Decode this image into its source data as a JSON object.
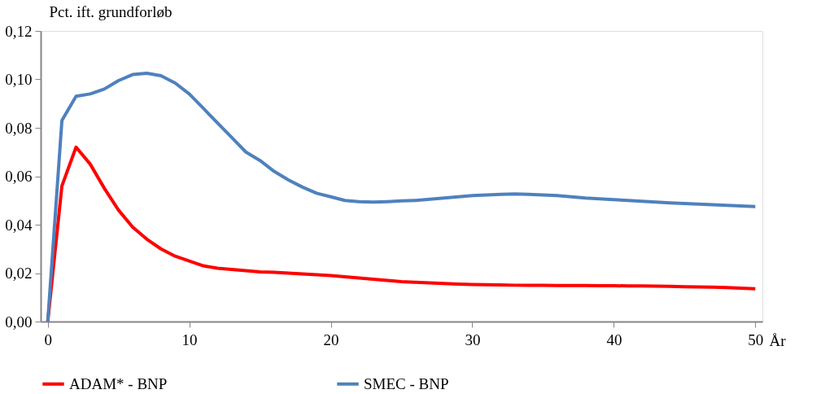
{
  "chart_data": {
    "type": "line",
    "ylabel": "Pct. ift. grundforløb",
    "xlabel": "År",
    "x": [
      0,
      1,
      2,
      3,
      4,
      5,
      6,
      7,
      8,
      9,
      10,
      11,
      12,
      13,
      14,
      15,
      16,
      17,
      18,
      19,
      20,
      21,
      22,
      23,
      24,
      25,
      26,
      27,
      28,
      29,
      30,
      31,
      32,
      33,
      34,
      35,
      36,
      37,
      38,
      39,
      40,
      41,
      42,
      43,
      44,
      45,
      46,
      47,
      48,
      49,
      50
    ],
    "series": [
      {
        "name": "ADAM* - BNP",
        "color": "#ff0000",
        "values": [
          0,
          0.056,
          0.072,
          0.065,
          0.055,
          0.046,
          0.039,
          0.034,
          0.03,
          0.027,
          0.025,
          0.023,
          0.022,
          0.0215,
          0.021,
          0.0205,
          0.0203,
          0.02,
          0.0197,
          0.0193,
          0.019,
          0.0185,
          0.018,
          0.0175,
          0.017,
          0.0165,
          0.0162,
          0.016,
          0.0157,
          0.0155,
          0.0153,
          0.0152,
          0.0151,
          0.015,
          0.015,
          0.015,
          0.0149,
          0.0149,
          0.0149,
          0.0148,
          0.0148,
          0.0147,
          0.0147,
          0.0146,
          0.0145,
          0.0144,
          0.0143,
          0.0142,
          0.014,
          0.0138,
          0.0135
        ]
      },
      {
        "name": "SMEC - BNP",
        "color": "#4f81bd",
        "values": [
          0,
          0.083,
          0.093,
          0.094,
          0.096,
          0.0995,
          0.102,
          0.1025,
          0.1015,
          0.0985,
          0.094,
          0.088,
          0.082,
          0.076,
          0.07,
          0.0665,
          0.062,
          0.0585,
          0.0555,
          0.053,
          0.0515,
          0.05,
          0.0495,
          0.0493,
          0.0495,
          0.0498,
          0.05,
          0.0505,
          0.051,
          0.0515,
          0.052,
          0.0523,
          0.0525,
          0.0527,
          0.0525,
          0.0523,
          0.052,
          0.0515,
          0.051,
          0.0507,
          0.0503,
          0.05,
          0.0497,
          0.0493,
          0.049,
          0.0487,
          0.0485,
          0.0482,
          0.048,
          0.0477,
          0.0475
        ]
      }
    ],
    "xlim": [
      -0.5,
      50.5
    ],
    "xticks": [
      0,
      10,
      20,
      30,
      40,
      50
    ],
    "ylim": [
      0,
      0.12
    ],
    "yticks": [
      {
        "value": 0,
        "label": "0,00"
      },
      {
        "value": 0.02,
        "label": "0,02"
      },
      {
        "value": 0.04,
        "label": "0,04"
      },
      {
        "value": 0.06,
        "label": "0,06"
      },
      {
        "value": 0.08,
        "label": "0,08"
      },
      {
        "value": 0.1,
        "label": "0,10"
      },
      {
        "value": 0.12,
        "label": "0,12"
      }
    ],
    "grid": false,
    "legend": "bottom",
    "marker": "none",
    "line_style": "solid"
  }
}
